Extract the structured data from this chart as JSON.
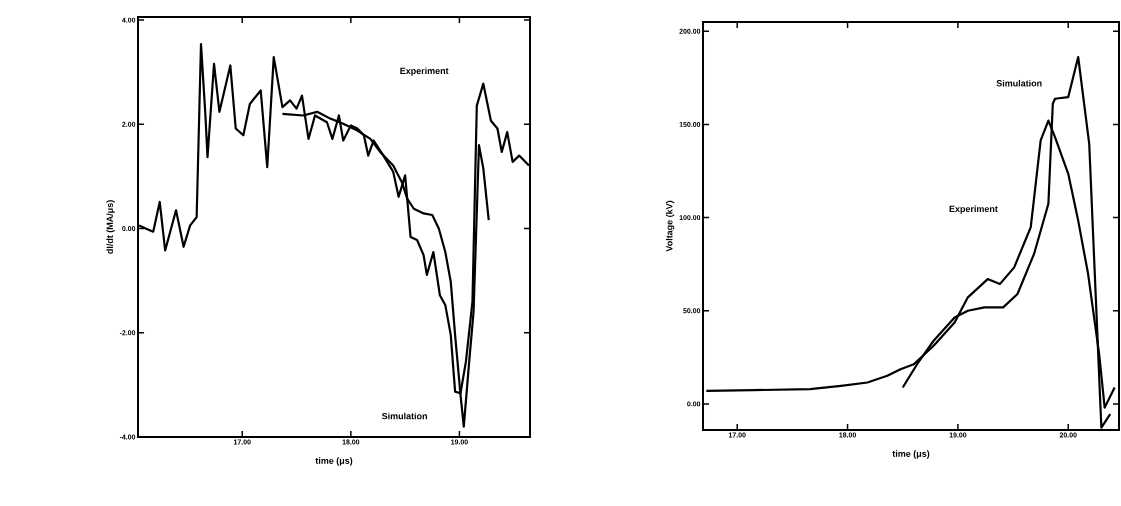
{
  "chart_data": [
    {
      "type": "line",
      "xlabel": "time (μs)",
      "ylabel": "dI/dt (MA/μs)",
      "line_style": "solid",
      "xlim": [
        16.04,
        19.65
      ],
      "ylim": [
        -4.0,
        4.06
      ],
      "xticks": [
        {
          "value": 17,
          "label": "17.00"
        },
        {
          "value": 18,
          "label": "18.00"
        },
        {
          "value": 19,
          "label": "19.00"
        }
      ],
      "yticks": [
        {
          "value": -4,
          "label": "-4.00"
        },
        {
          "value": -2,
          "label": "-2.00"
        },
        {
          "value": 0,
          "label": "0.00"
        },
        {
          "value": 2,
          "label": "2.00"
        },
        {
          "value": 4,
          "label": "4.00"
        }
      ],
      "series": [
        {
          "color": "#000000",
          "x": [
            16.05,
            16.11,
            16.18,
            16.24,
            16.29,
            16.39,
            16.46,
            16.52,
            16.58,
            16.62,
            16.66,
            16.68,
            16.74,
            16.79,
            16.89,
            16.94,
            17.01,
            17.07,
            17.17,
            17.23,
            17.29,
            17.37,
            17.44,
            17.5,
            17.55,
            17.61,
            17.67,
            17.78,
            17.83,
            17.89,
            17.93,
            18.0,
            18.06,
            18.12,
            18.16,
            18.21,
            18.3,
            18.39,
            18.44,
            18.5,
            18.55,
            18.61,
            18.67,
            18.7,
            18.76,
            18.82,
            18.87,
            18.92,
            18.96,
            19.01,
            19.06,
            19.12,
            19.16,
            19.22,
            19.29,
            19.35,
            19.39,
            19.44,
            19.49,
            19.55,
            19.64
          ],
          "values": [
            0.06,
            0.0,
            -0.06,
            0.51,
            -0.42,
            0.35,
            -0.35,
            0.06,
            0.22,
            3.54,
            2.2,
            1.37,
            3.16,
            2.24,
            3.13,
            1.92,
            1.79,
            2.39,
            2.65,
            1.18,
            3.29,
            2.33,
            2.46,
            2.3,
            2.55,
            1.72,
            2.17,
            2.04,
            1.72,
            2.17,
            1.69,
            1.98,
            1.92,
            1.79,
            1.4,
            1.69,
            1.4,
            1.09,
            0.61,
            1.02,
            -0.16,
            -0.22,
            -0.51,
            -0.89,
            -0.45,
            -1.28,
            -1.47,
            -2.04,
            -3.13,
            -3.16,
            -2.55,
            -1.4,
            2.36,
            2.78,
            2.07,
            1.92,
            1.47,
            1.85,
            1.28,
            1.4,
            1.21
          ]
        },
        {
          "color": "#000000",
          "x": [
            17.37,
            17.56,
            17.69,
            17.81,
            17.93,
            18.06,
            18.18,
            18.27,
            18.39,
            18.47,
            18.52,
            18.58,
            18.67,
            18.75,
            18.81,
            18.87,
            18.92,
            18.96,
            19.01,
            19.04,
            19.09,
            19.13,
            19.18,
            19.22,
            19.27
          ],
          "values": [
            2.2,
            2.17,
            2.24,
            2.11,
            2.01,
            1.88,
            1.72,
            1.47,
            1.21,
            0.89,
            0.57,
            0.38,
            0.29,
            0.26,
            0.0,
            -0.45,
            -1.02,
            -2.04,
            -3.19,
            -3.8,
            -2.55,
            -1.6,
            1.6,
            1.15,
            0.16
          ]
        }
      ],
      "annotations": [
        "Experiment",
        "Simulation"
      ]
    },
    {
      "type": "line",
      "xlabel": "time (μs)",
      "ylabel": "Voltage (kV)",
      "line_style": "solid",
      "xlim": [
        16.69,
        20.46
      ],
      "ylim": [
        -14,
        205
      ],
      "xticks": [
        {
          "value": 17,
          "label": "17.00"
        },
        {
          "value": 18,
          "label": "18.00"
        },
        {
          "value": 19,
          "label": "19.00"
        },
        {
          "value": 20,
          "label": "20.00"
        }
      ],
      "yticks": [
        {
          "value": 0,
          "label": "0.00"
        },
        {
          "value": 50,
          "label": "50.00"
        },
        {
          "value": 100,
          "label": "100.00"
        },
        {
          "value": 150,
          "label": "150.00"
        },
        {
          "value": 200,
          "label": "200.00"
        }
      ],
      "series": [
        {
          "color": "#000000",
          "x": [
            16.72,
            17.15,
            17.66,
            17.94,
            18.18,
            18.36,
            18.48,
            18.6,
            18.78,
            18.97,
            19.09,
            19.27,
            19.38,
            19.51,
            19.66,
            19.75,
            19.82,
            19.88,
            20.0,
            20.09,
            20.18,
            20.28,
            20.33,
            20.42
          ],
          "values": [
            7.0,
            7.4,
            7.9,
            9.7,
            11.5,
            15.1,
            18.6,
            21.3,
            31.2,
            43.7,
            57.2,
            67.0,
            64.3,
            73.3,
            94.8,
            141.4,
            152.1,
            143.2,
            123.5,
            98.4,
            69.7,
            26.7,
            -2.0,
            8.8
          ]
        },
        {
          "color": "#000000",
          "x": [
            18.5,
            18.63,
            18.78,
            18.97,
            19.09,
            19.24,
            19.41,
            19.54,
            19.69,
            19.82,
            19.86,
            19.88,
            20.0,
            20.09,
            20.19,
            20.3,
            20.38
          ],
          "values": [
            8.8,
            21.3,
            33.9,
            46.4,
            50.0,
            51.8,
            51.8,
            59.0,
            80.5,
            107.4,
            161.1,
            163.8,
            164.7,
            186.2,
            139.6,
            -12.7,
            -5.5
          ]
        }
      ],
      "annotations": [
        "Simulation",
        "Experiment"
      ]
    }
  ]
}
